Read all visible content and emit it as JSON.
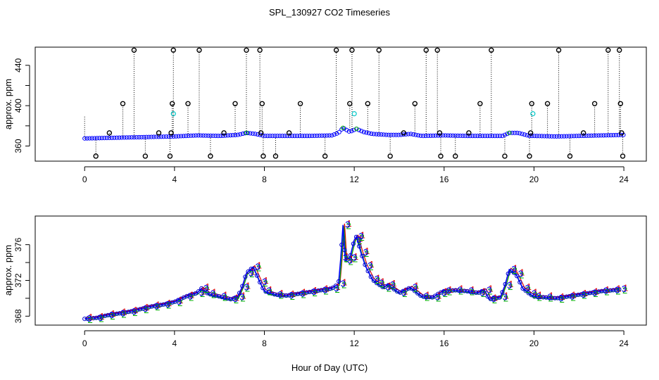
{
  "figure": {
    "title": "SPL_130927  CO2 Timeseries",
    "xlabel": "Hour of Day (UTC)"
  },
  "colors": {
    "black": "#000000",
    "blue": "#0000ff",
    "cyan": "#00c8c8",
    "green": "#00b000",
    "red": "#e00000",
    "darkblue": "#0000cc"
  },
  "chart_data": [
    {
      "type": "scatter",
      "title": "",
      "xlabel": "",
      "ylabel": "approx. ppm",
      "xlim": [
        -2.2,
        25
      ],
      "ylim": [
        345,
        458
      ],
      "xticks": [
        0,
        4,
        8,
        12,
        16,
        20,
        24
      ],
      "yticks": [
        360,
        400,
        440
      ],
      "grid": false,
      "baseline": {
        "name": "",
        "x": [
          0,
          1,
          2,
          3,
          4,
          5,
          6,
          6.8,
          7.2,
          7.6,
          8,
          9,
          10,
          11,
          11.3,
          11.5,
          11.8,
          12.1,
          12.4,
          12.8,
          13.5,
          14,
          14.5,
          15,
          16,
          17,
          18,
          18.6,
          18.9,
          19.3,
          19.8,
          20,
          21,
          22,
          23,
          24
        ],
        "y": [
          367.5,
          368,
          368.5,
          369,
          369.5,
          370.5,
          370,
          371,
          373,
          372,
          370,
          370,
          370,
          370.5,
          373,
          378,
          374,
          377,
          374,
          372,
          371,
          371,
          372,
          370,
          370.5,
          370,
          370,
          370,
          373,
          373,
          370,
          370,
          369.5,
          370,
          370.5,
          371
        ]
      },
      "outliers": {
        "x": [
          0.5,
          1.1,
          1.7,
          2.2,
          2.7,
          3.3,
          3.8,
          3.85,
          3.9,
          3.95,
          4.6,
          5.1,
          5.6,
          6.2,
          6.7,
          7.2,
          7.8,
          7.85,
          7.9,
          7.95,
          8.5,
          9.1,
          9.6,
          10.7,
          11.2,
          11.8,
          11.9,
          12.6,
          13.1,
          13.6,
          14.2,
          14.7,
          15.2,
          15.7,
          15.8,
          15.85,
          16.5,
          17.1,
          17.6,
          18.1,
          18.7,
          19.8,
          19.85,
          19.9,
          20.6,
          21.1,
          21.6,
          22.2,
          22.7,
          23.3,
          23.8,
          23.85,
          23.9,
          23.95
        ],
        "y": [
          350,
          373,
          402,
          455,
          350,
          373,
          350,
          373,
          402,
          455,
          402,
          455,
          350,
          373,
          402,
          455,
          455,
          373,
          402,
          350,
          350,
          373,
          402,
          350,
          455,
          402,
          455,
          402,
          455,
          350,
          373,
          402,
          455,
          455,
          373,
          350,
          350,
          373,
          402,
          455,
          350,
          350,
          373,
          402,
          402,
          455,
          350,
          373,
          402,
          455,
          455,
          402,
          373,
          350
        ]
      },
      "cyan_points": {
        "x": [
          3.95,
          12.0,
          19.95
        ],
        "y": [
          392,
          392,
          392
        ]
      }
    },
    {
      "type": "line",
      "title": "",
      "xlabel": "",
      "ylabel": "approx. ppm",
      "xlim": [
        -2.2,
        25
      ],
      "ylim": [
        367,
        379.2
      ],
      "xticks": [
        0,
        4,
        8,
        12,
        16,
        20,
        24
      ],
      "yticks": [
        368,
        372,
        376
      ],
      "grid": false,
      "x": [
        0,
        0.5,
        1,
        1.5,
        2,
        2.5,
        3,
        3.5,
        4,
        4.5,
        5,
        5.2,
        5.5,
        6,
        6.5,
        6.8,
        7,
        7.2,
        7.5,
        7.8,
        8,
        8.5,
        9,
        9.5,
        10,
        10.5,
        11,
        11.3,
        11.4,
        11.5,
        11.6,
        11.8,
        12,
        12.1,
        12.3,
        12.5,
        12.8,
        13,
        13.3,
        13.5,
        14,
        14.5,
        15,
        15.5,
        15.8,
        16,
        16.5,
        17,
        17.5,
        17.8,
        18,
        18.5,
        18.7,
        18.9,
        19.2,
        19.5,
        19.8,
        20,
        20.5,
        21,
        21.5,
        22,
        22.5,
        23,
        23.5,
        23.8
      ],
      "series": [
        {
          "name": "",
          "y": [
            367.7,
            367.8,
            368.1,
            368.3,
            368.5,
            368.8,
            369.1,
            369.3,
            369.6,
            370.2,
            370.6,
            371.1,
            370.5,
            370.2,
            369.9,
            370.1,
            371.2,
            372.8,
            373.5,
            371.8,
            370.8,
            370.4,
            370.3,
            370.5,
            370.7,
            370.9,
            371.1,
            371.6,
            374.5,
            378.2,
            374.2,
            374.5,
            376.5,
            376.9,
            375.1,
            373.6,
            372.1,
            371.7,
            371.2,
            371.5,
            370.6,
            371.2,
            370.2,
            370.1,
            370.6,
            370.8,
            370.9,
            370.8,
            370.6,
            370.9,
            369.9,
            370.1,
            371.4,
            373.2,
            372.7,
            371.1,
            370.5,
            370.2,
            370.1,
            370.0,
            370.2,
            370.4,
            370.6,
            370.8,
            370.9,
            371.0
          ]
        }
      ],
      "series_labels": [
        "1",
        "2",
        "3"
      ]
    }
  ]
}
